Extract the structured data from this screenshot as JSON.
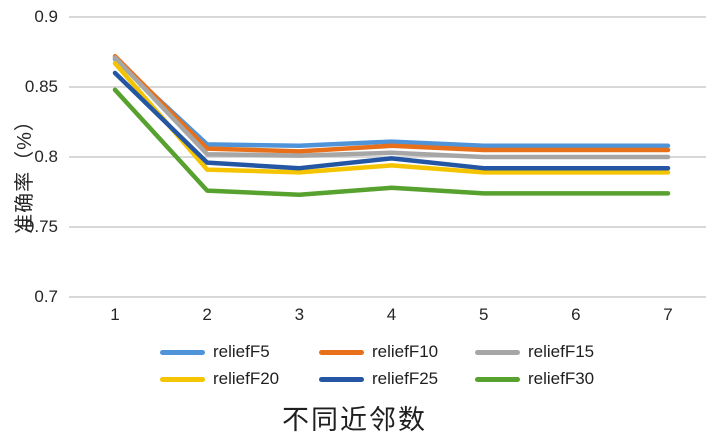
{
  "colors": {
    "background": "#ffffff",
    "gridline": "#cccccc",
    "tick_text": "#262626",
    "title_text": "#1f1f1f"
  },
  "chart_data": {
    "type": "line",
    "title": "",
    "xlabel": "不同近邻数",
    "ylabel": "准确率（%）",
    "x": [
      1,
      2,
      3,
      4,
      5,
      6,
      7
    ],
    "xtick_labels": [
      "1",
      "2",
      "3",
      "4",
      "5",
      "6",
      "7"
    ],
    "ylim": [
      0.7,
      0.9
    ],
    "ytick_values": [
      0.9,
      0.85,
      0.8,
      0.75,
      0.7
    ],
    "ytick_labels": [
      "0.9",
      "0.85",
      "0.8",
      "0.75",
      "0.7"
    ],
    "grid": "horizontal",
    "legend_position": "bottom",
    "series": [
      {
        "name": "reliefF5",
        "color": "#4f94d8",
        "values": [
          0.87,
          0.809,
          0.808,
          0.811,
          0.808,
          0.808,
          0.808
        ]
      },
      {
        "name": "reliefF10",
        "color": "#e8701a",
        "values": [
          0.872,
          0.806,
          0.804,
          0.808,
          0.805,
          0.805,
          0.805
        ]
      },
      {
        "name": "reliefF15",
        "color": "#a6a6a6",
        "values": [
          0.871,
          0.802,
          0.801,
          0.803,
          0.8,
          0.8,
          0.8
        ]
      },
      {
        "name": "reliefF20",
        "color": "#f5c400",
        "values": [
          0.867,
          0.791,
          0.789,
          0.794,
          0.789,
          0.789,
          0.789
        ]
      },
      {
        "name": "reliefF25",
        "color": "#2456a4",
        "values": [
          0.86,
          0.796,
          0.792,
          0.799,
          0.792,
          0.792,
          0.792
        ]
      },
      {
        "name": "reliefF30",
        "color": "#57a12f",
        "values": [
          0.848,
          0.776,
          0.773,
          0.778,
          0.774,
          0.774,
          0.774
        ]
      }
    ]
  }
}
